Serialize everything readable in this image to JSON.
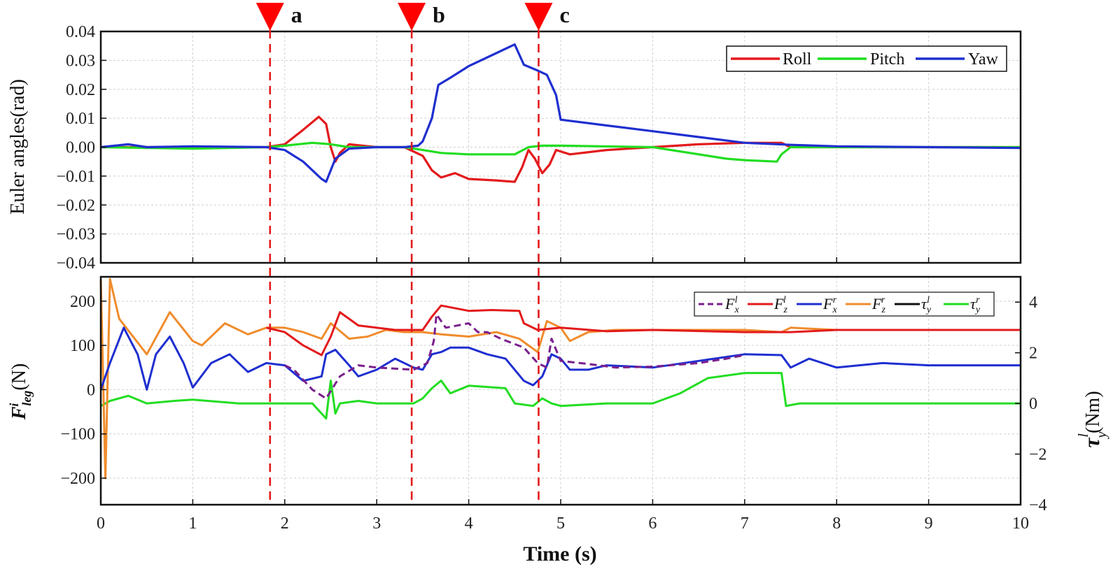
{
  "chart_data": [
    {
      "type": "line",
      "panel": "top",
      "title": "",
      "ylabel": "Euler angles(rad)",
      "xlabel": "",
      "xlim": [
        0,
        10
      ],
      "ylim": [
        -0.04,
        0.04
      ],
      "ytick_labels": [
        "0.04",
        "0.03",
        "0.02",
        "0.01",
        "0.00",
        "−0.01",
        "−0.02",
        "−0.03",
        "−0.04"
      ],
      "ytick_values": [
        0.04,
        0.03,
        0.02,
        0.01,
        0.0,
        -0.01,
        -0.02,
        -0.03,
        -0.04
      ],
      "grid": true,
      "legend_position": "top-right",
      "series": [
        {
          "name": "Roll",
          "color": "#e31a1c",
          "x": [
            0,
            1.0,
            1.8,
            2.0,
            2.2,
            2.37,
            2.45,
            2.5,
            2.55,
            2.6,
            2.7,
            3.0,
            3.3,
            3.5,
            3.6,
            3.7,
            3.85,
            4.0,
            4.3,
            4.5,
            4.58,
            4.65,
            4.72,
            4.8,
            4.88,
            4.95,
            5.1,
            5.5,
            6.0,
            6.5,
            7.0,
            7.4,
            7.5,
            8.0,
            9.0,
            10.0
          ],
          "values": [
            0,
            0,
            0,
            0.001,
            0.006,
            0.0105,
            0.008,
            0.0,
            -0.005,
            -0.002,
            0.001,
            0.0,
            0.0,
            -0.003,
            -0.008,
            -0.0105,
            -0.009,
            -0.011,
            -0.0115,
            -0.012,
            -0.007,
            -0.001,
            -0.004,
            -0.009,
            -0.006,
            -0.001,
            -0.0025,
            -0.001,
            0.0,
            0.001,
            0.0015,
            0.0015,
            0.0,
            0.0,
            0.0,
            0.0
          ]
        },
        {
          "name": "Pitch",
          "color": "#22dd22",
          "x": [
            0,
            1.0,
            1.8,
            2.0,
            2.3,
            2.5,
            2.7,
            3.3,
            3.5,
            3.7,
            4.0,
            4.5,
            4.65,
            4.8,
            5.0,
            6.0,
            6.8,
            7.0,
            7.35,
            7.4,
            7.5,
            8.0,
            9.0,
            10.0
          ],
          "values": [
            0,
            -0.0005,
            0,
            0.0005,
            0.0015,
            0.001,
            0.0,
            0.0,
            -0.001,
            -0.002,
            -0.0025,
            -0.0025,
            0.0,
            0.0005,
            0.0005,
            0.0,
            -0.004,
            -0.0045,
            -0.005,
            -0.0025,
            0.0,
            0.0,
            0.0,
            0.0
          ]
        },
        {
          "name": "Yaw",
          "color": "#1f2fd0",
          "x": [
            0,
            0.3,
            0.5,
            1.0,
            1.8,
            2.0,
            2.2,
            2.4,
            2.45,
            2.55,
            2.7,
            3.0,
            3.3,
            3.45,
            3.5,
            3.6,
            3.67,
            3.8,
            4.0,
            4.3,
            4.5,
            4.6,
            4.75,
            4.85,
            4.95,
            5.0,
            5.5,
            6.0,
            6.5,
            7.0,
            7.5,
            8.0,
            9.0,
            10.0
          ],
          "values": [
            0,
            0.001,
            0,
            0.0003,
            0,
            -0.001,
            -0.005,
            -0.011,
            -0.012,
            -0.004,
            -0.0005,
            0,
            0,
            0.0005,
            0.002,
            0.01,
            0.0215,
            0.024,
            0.028,
            0.0325,
            0.0355,
            0.0285,
            0.0265,
            0.025,
            0.018,
            0.0095,
            0.0075,
            0.0055,
            0.0035,
            0.0015,
            0.0008,
            0.0003,
            0,
            -0.0003
          ]
        }
      ],
      "markers": [
        {
          "label": "a",
          "x": 1.84,
          "color": "#e31a1c"
        },
        {
          "label": "b",
          "x": 3.38,
          "color": "#e31a1c"
        },
        {
          "label": "c",
          "x": 4.76,
          "color": "#e31a1c"
        }
      ]
    },
    {
      "type": "line",
      "panel": "bottom",
      "title": "",
      "ylabel_parts": {
        "base": "F",
        "sup": "i",
        "sub": "leg",
        "unit": "(N)"
      },
      "ylabel_right_parts": {
        "base": "τ",
        "sub": "y",
        "sup": "l",
        "unit": "(Nm)"
      },
      "xlabel": "Time (s)",
      "xlim": [
        0,
        10
      ],
      "ylim": [
        -260,
        255
      ],
      "ylim_right": [
        -4,
        5
      ],
      "ytick_labels": [
        "200",
        "100",
        "0",
        "−100",
        "−200"
      ],
      "ytick_values": [
        200,
        100,
        0,
        -100,
        -200
      ],
      "ytick_right_labels": [
        "4",
        "2",
        "0",
        "−2",
        "−4"
      ],
      "ytick_right_values": [
        4,
        2,
        0,
        -2,
        -4
      ],
      "xtick_labels": [
        "0",
        "1",
        "2",
        "3",
        "4",
        "5",
        "6",
        "7",
        "8",
        "9",
        "10"
      ],
      "xtick_values": [
        0,
        1,
        2,
        3,
        4,
        5,
        6,
        7,
        8,
        9,
        10
      ],
      "grid": true,
      "legend_position": "top-right",
      "series": [
        {
          "name": "F_x^l",
          "legend_base": "F",
          "legend_sub": "x",
          "legend_sup": "l",
          "color": "#7a1f8c",
          "dash": true,
          "x": [
            2.0,
            2.1,
            2.3,
            2.45,
            2.6,
            2.8,
            3.0,
            3.4,
            3.55,
            3.62,
            3.65,
            3.75,
            4.0,
            4.1,
            4.2,
            4.35,
            4.6,
            4.75,
            4.85,
            4.9,
            5.0,
            5.3,
            5.6,
            6.0,
            6.5,
            6.8,
            7.0
          ],
          "values": [
            55,
            45,
            0,
            -20,
            30,
            55,
            50,
            45,
            60,
            110,
            170,
            140,
            150,
            130,
            130,
            115,
            95,
            60,
            50,
            115,
            65,
            58,
            50,
            52,
            60,
            70,
            78
          ]
        },
        {
          "name": "F_z^l",
          "legend_base": "F",
          "legend_sub": "z",
          "legend_sup": "l",
          "color": "#e31a1c",
          "dash": false,
          "x": [
            1.8,
            2.0,
            2.2,
            2.4,
            2.5,
            2.6,
            2.8,
            3.2,
            3.5,
            3.6,
            3.7,
            4.0,
            4.25,
            4.55,
            4.6,
            4.75,
            5.0,
            5.5,
            6.0,
            7.0,
            7.5,
            8.0,
            9.0,
            10.0
          ],
          "values": [
            140,
            130,
            100,
            78,
            120,
            175,
            145,
            135,
            135,
            165,
            190,
            178,
            180,
            178,
            150,
            135,
            140,
            132,
            135,
            130,
            130,
            135,
            135,
            135
          ]
        },
        {
          "name": "F_x^r",
          "legend_base": "F",
          "legend_sub": "x",
          "legend_sup": "r",
          "color": "#1f2fd0",
          "dash": false,
          "x": [
            0,
            0.1,
            0.25,
            0.4,
            0.5,
            0.6,
            0.75,
            0.9,
            1.0,
            1.2,
            1.4,
            1.6,
            1.8,
            2.0,
            2.2,
            2.4,
            2.45,
            2.55,
            2.7,
            2.8,
            3.0,
            3.2,
            3.4,
            3.5,
            3.6,
            3.7,
            3.8,
            4.0,
            4.2,
            4.4,
            4.6,
            4.7,
            4.8,
            4.9,
            5.0,
            5.1,
            5.3,
            5.5,
            6.0,
            6.5,
            7.0,
            7.4,
            7.5,
            7.7,
            8.0,
            8.5,
            9.0,
            10.0
          ],
          "values": [
            0,
            60,
            140,
            80,
            0,
            80,
            120,
            60,
            5,
            60,
            80,
            40,
            60,
            55,
            20,
            30,
            80,
            90,
            55,
            30,
            45,
            70,
            50,
            45,
            80,
            85,
            95,
            95,
            80,
            70,
            20,
            10,
            30,
            80,
            70,
            45,
            45,
            55,
            50,
            65,
            80,
            78,
            50,
            70,
            50,
            60,
            55,
            55
          ]
        },
        {
          "name": "F_z^r",
          "legend_base": "F",
          "legend_sub": "z",
          "legend_sup": "r",
          "color": "#f08c2c",
          "dash": false,
          "x": [
            0,
            0.05,
            0.1,
            0.2,
            0.5,
            0.75,
            1.0,
            1.1,
            1.35,
            1.6,
            1.8,
            2.0,
            2.2,
            2.4,
            2.5,
            2.7,
            2.9,
            3.1,
            3.3,
            3.5,
            3.7,
            4.0,
            4.3,
            4.55,
            4.65,
            4.75,
            4.85,
            5.0,
            5.1,
            5.3,
            5.6,
            6.0,
            6.5,
            7.0,
            7.4,
            7.5,
            8.0,
            9.0,
            10.0
          ],
          "values": [
            250,
            -200,
            250,
            160,
            80,
            175,
            110,
            100,
            150,
            125,
            140,
            140,
            130,
            115,
            150,
            115,
            120,
            135,
            130,
            130,
            125,
            120,
            130,
            115,
            100,
            85,
            155,
            140,
            110,
            130,
            135,
            135,
            135,
            135,
            130,
            140,
            135,
            135,
            135
          ]
        },
        {
          "name": "tau_y^l",
          "legend_base": "τ",
          "legend_sub": "y",
          "legend_sup": "l",
          "color": "#111111",
          "dash": false,
          "x": [],
          "values": []
        },
        {
          "name": "tau_y^r",
          "legend_base": "τ",
          "legend_sub": "y",
          "legend_sup": "r",
          "color": "#22dd22",
          "dash": false,
          "axis": "right",
          "x": [
            0,
            0.1,
            0.3,
            0.5,
            0.8,
            1.0,
            1.5,
            2.0,
            2.3,
            2.45,
            2.5,
            2.55,
            2.6,
            2.8,
            3.0,
            3.4,
            3.5,
            3.6,
            3.7,
            3.8,
            4.0,
            4.4,
            4.5,
            4.7,
            4.8,
            4.9,
            5.0,
            5.5,
            6.0,
            6.3,
            6.6,
            7.0,
            7.4,
            7.45,
            7.6,
            8.0,
            9.0,
            10.0
          ],
          "values": [
            -0.1,
            0.1,
            0.3,
            0.0,
            0.1,
            0.15,
            0.0,
            0.0,
            0.0,
            -0.6,
            0.9,
            -0.4,
            0.0,
            0.1,
            0.0,
            0.0,
            0.2,
            0.6,
            0.9,
            0.4,
            0.7,
            0.6,
            0.0,
            -0.1,
            0.2,
            0.0,
            -0.1,
            0.0,
            0.0,
            0.4,
            1.0,
            1.2,
            1.2,
            -0.1,
            0.0,
            0.0,
            0.0,
            0.0
          ]
        }
      ]
    }
  ]
}
